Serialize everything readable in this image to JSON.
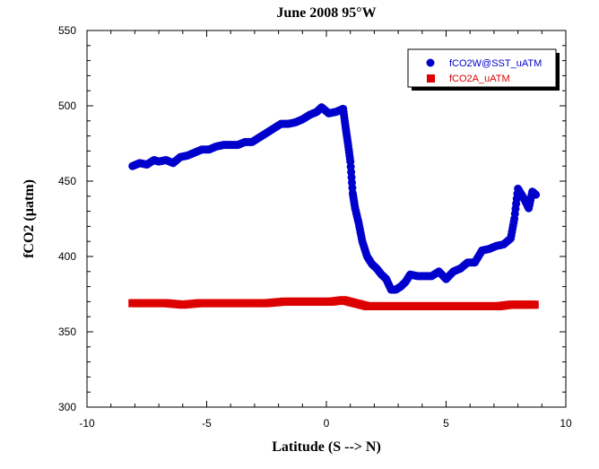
{
  "chart_data": {
    "type": "scatter",
    "title": "June 2008 95°W",
    "xlabel": "Latitude (S --> N)",
    "ylabel": "fCO2 (µatm)",
    "xlim": [
      -10,
      10
    ],
    "ylim": [
      300,
      550
    ],
    "xticks": [
      -10,
      -5,
      0,
      5,
      10
    ],
    "yticks": [
      300,
      350,
      400,
      450,
      500,
      550
    ],
    "grid": false,
    "legend_position": "top-right",
    "series": [
      {
        "name": "fCO2W@SST_uATM",
        "color": "#0000cc",
        "marker": "circle",
        "points": [
          [
            -8.1,
            460
          ],
          [
            -7.8,
            462
          ],
          [
            -7.5,
            461
          ],
          [
            -7.2,
            464
          ],
          [
            -7.0,
            463
          ],
          [
            -6.7,
            464
          ],
          [
            -6.4,
            462
          ],
          [
            -6.1,
            466
          ],
          [
            -5.8,
            467
          ],
          [
            -5.5,
            469
          ],
          [
            -5.2,
            471
          ],
          [
            -4.9,
            471
          ],
          [
            -4.6,
            473
          ],
          [
            -4.3,
            474
          ],
          [
            -4.0,
            474
          ],
          [
            -3.7,
            474
          ],
          [
            -3.4,
            476
          ],
          [
            -3.1,
            476
          ],
          [
            -2.8,
            479
          ],
          [
            -2.5,
            482
          ],
          [
            -2.2,
            485
          ],
          [
            -1.9,
            488
          ],
          [
            -1.6,
            488
          ],
          [
            -1.3,
            489
          ],
          [
            -1.0,
            491
          ],
          [
            -0.7,
            494
          ],
          [
            -0.4,
            496
          ],
          [
            -0.2,
            499
          ],
          [
            0.1,
            495
          ],
          [
            0.4,
            496
          ],
          [
            0.7,
            498
          ],
          [
            0.8,
            486
          ],
          [
            0.9,
            475
          ],
          [
            1.0,
            463
          ],
          [
            1.1,
            442
          ],
          [
            1.2,
            432
          ],
          [
            1.35,
            422
          ],
          [
            1.5,
            410
          ],
          [
            1.7,
            400
          ],
          [
            1.9,
            395
          ],
          [
            2.1,
            392
          ],
          [
            2.3,
            388
          ],
          [
            2.5,
            385
          ],
          [
            2.7,
            378
          ],
          [
            2.9,
            378
          ],
          [
            3.1,
            380
          ],
          [
            3.3,
            383
          ],
          [
            3.5,
            388
          ],
          [
            3.8,
            387
          ],
          [
            4.1,
            387
          ],
          [
            4.4,
            387
          ],
          [
            4.7,
            390
          ],
          [
            5.0,
            385
          ],
          [
            5.3,
            390
          ],
          [
            5.6,
            392
          ],
          [
            5.9,
            396
          ],
          [
            6.2,
            396
          ],
          [
            6.5,
            404
          ],
          [
            6.8,
            405
          ],
          [
            7.1,
            407
          ],
          [
            7.4,
            408
          ],
          [
            7.7,
            412
          ],
          [
            7.85,
            425
          ],
          [
            8.0,
            445
          ],
          [
            8.15,
            441
          ],
          [
            8.3,
            437
          ],
          [
            8.45,
            432
          ],
          [
            8.6,
            443
          ],
          [
            8.75,
            441
          ]
        ]
      },
      {
        "name": "fCO2A_uATM",
        "color": "#dd0000",
        "marker": "square",
        "points": [
          [
            -8.1,
            369
          ],
          [
            -7.4,
            369
          ],
          [
            -6.7,
            369
          ],
          [
            -6.0,
            368
          ],
          [
            -5.3,
            369
          ],
          [
            -4.6,
            369
          ],
          [
            -3.9,
            369
          ],
          [
            -3.2,
            369
          ],
          [
            -2.5,
            369
          ],
          [
            -1.8,
            370
          ],
          [
            -1.3,
            370
          ],
          [
            -0.8,
            370
          ],
          [
            -0.3,
            370
          ],
          [
            0.2,
            370
          ],
          [
            0.7,
            371
          ],
          [
            1.2,
            369
          ],
          [
            1.7,
            367
          ],
          [
            2.2,
            367
          ],
          [
            2.7,
            367
          ],
          [
            3.2,
            367
          ],
          [
            3.7,
            367
          ],
          [
            4.2,
            367
          ],
          [
            4.7,
            367
          ],
          [
            5.2,
            367
          ],
          [
            5.7,
            367
          ],
          [
            6.2,
            367
          ],
          [
            6.7,
            367
          ],
          [
            7.2,
            367
          ],
          [
            7.7,
            368
          ],
          [
            8.2,
            368
          ],
          [
            8.7,
            368
          ]
        ]
      }
    ]
  }
}
